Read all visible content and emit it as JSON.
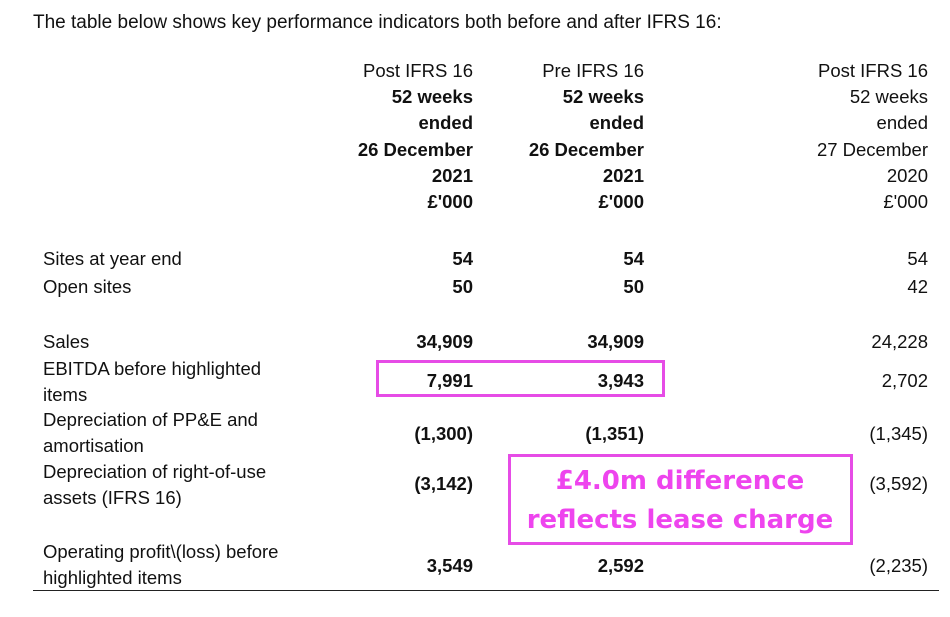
{
  "intro": "The table below shows key performance indicators both before and after IFRS 16:",
  "columns": [
    {
      "lines": [
        "Post IFRS 16",
        "52 weeks",
        "ended",
        "26 December",
        "2021",
        "£'000"
      ]
    },
    {
      "lines": [
        "Pre IFRS 16",
        "52 weeks",
        "ended",
        "26 December",
        "2021",
        "£'000"
      ]
    },
    {
      "lines": [
        "Post IFRS 16",
        "52 weeks",
        "ended",
        "27 December",
        "2020",
        "£'000"
      ]
    }
  ],
  "rows": [
    {
      "label": [
        "Sites at year end"
      ],
      "values": [
        "54",
        "54",
        "54"
      ]
    },
    {
      "label": [
        "Open sites"
      ],
      "values": [
        "50",
        "50",
        "42"
      ]
    },
    {
      "label": [
        "Sales"
      ],
      "values": [
        "34,909",
        "34,909",
        "24,228"
      ]
    },
    {
      "label": [
        "EBITDA before highlighted",
        "items"
      ],
      "values": [
        "7,991",
        "3,943",
        "2,702"
      ]
    },
    {
      "label": [
        "Depreciation of PP&E and",
        "amortisation"
      ],
      "values": [
        "(1,300)",
        "(1,351)",
        "(1,345)"
      ]
    },
    {
      "label": [
        "Depreciation of right-of-use",
        "assets (IFRS 16)"
      ],
      "values": [
        "(3,142)",
        "",
        "(3,592)"
      ]
    },
    {
      "label": [
        "Operating profit\\(loss) before",
        "highlighted items"
      ],
      "values": [
        "3,549",
        "2,592",
        "(2,235)"
      ]
    }
  ],
  "annotation": {
    "lines": [
      "£4.0m difference",
      "reflects lease charge"
    ],
    "color": "#ee44ee"
  }
}
